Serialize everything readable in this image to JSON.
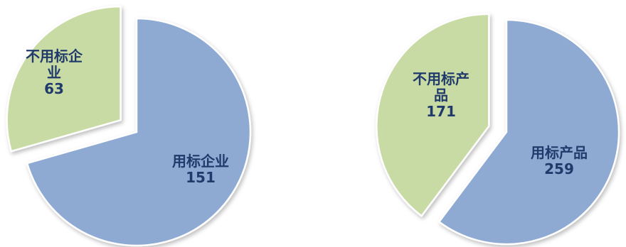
{
  "chart_data": [
    {
      "type": "pie",
      "title": "",
      "slices": [
        {
          "label_lines": [
            "不用标企",
            "业"
          ],
          "value": 63,
          "color": "#c9dba4",
          "exploded": true
        },
        {
          "label_lines": [
            "用标企业"
          ],
          "value": 151,
          "color": "#8eaad2",
          "exploded": false
        }
      ]
    },
    {
      "type": "pie",
      "title": "",
      "slices": [
        {
          "label_lines": [
            "不用标产",
            "品"
          ],
          "value": 171,
          "color": "#c9dba4",
          "exploded": true
        },
        {
          "label_lines": [
            "用标产品"
          ],
          "value": 259,
          "color": "#8eaad2",
          "exploded": false
        }
      ]
    }
  ]
}
